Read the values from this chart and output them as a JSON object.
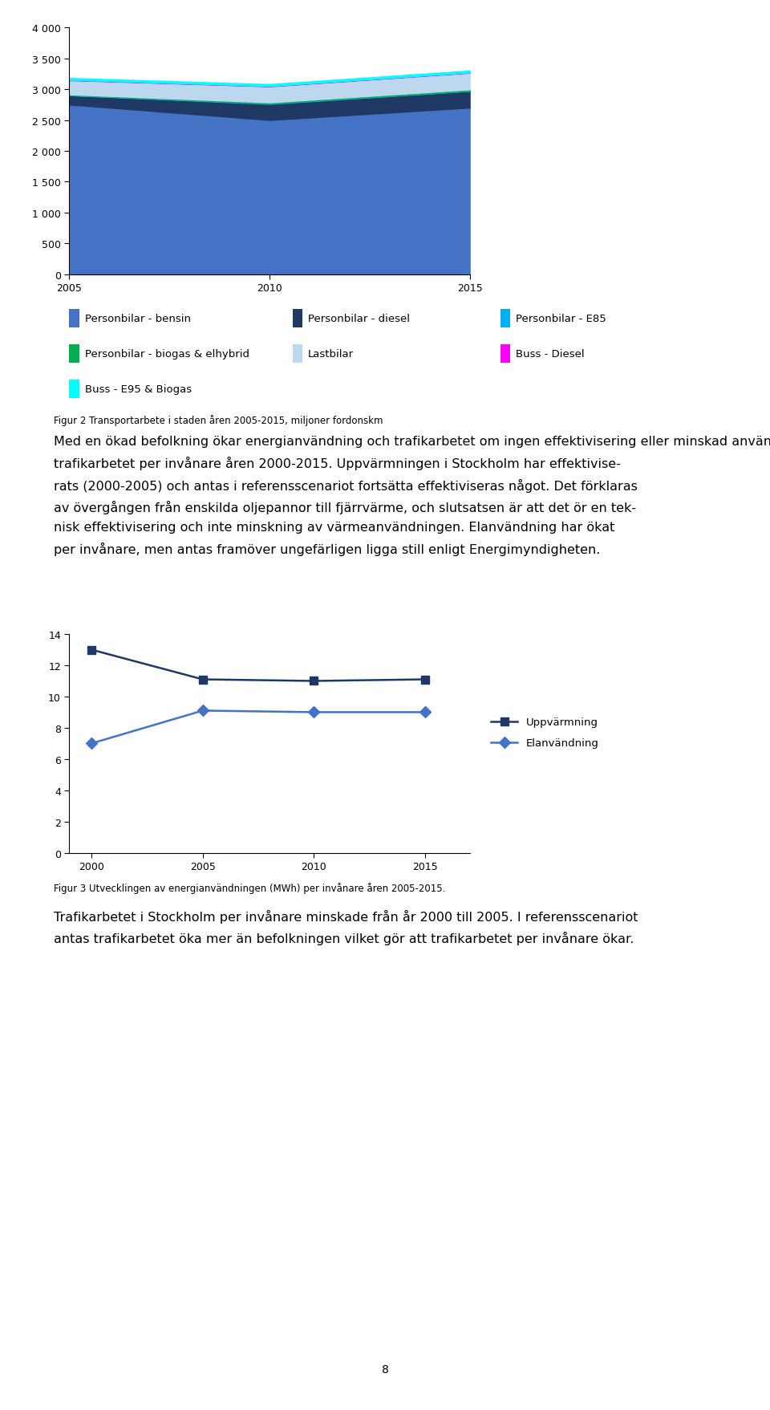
{
  "chart1": {
    "years": [
      2005,
      2010,
      2015
    ],
    "series_order": [
      "Personbilar - bensin",
      "Personbilar - diesel",
      "Personbilar - E85",
      "Personbilar - biogas & elhybrid",
      "Lastbilar",
      "Buss - Diesel",
      "Buss - E95 & Biogas"
    ],
    "series": {
      "Personbilar - bensin": [
        2750,
        2500,
        2700
      ],
      "Personbilar - diesel": [
        150,
        260,
        270
      ],
      "Personbilar - E85": [
        5,
        10,
        5
      ],
      "Personbilar - biogas & elhybrid": [
        10,
        15,
        20
      ],
      "Lastbilar": [
        230,
        260,
        270
      ],
      "Buss - Diesel": [
        5,
        5,
        5
      ],
      "Buss - E95 & Biogas": [
        30,
        30,
        30
      ]
    },
    "colors": {
      "Personbilar - bensin": "#4472C4",
      "Personbilar - diesel": "#1F3864",
      "Personbilar - E85": "#00B0F0",
      "Personbilar - biogas & elhybrid": "#00B050",
      "Lastbilar": "#BDD7EE",
      "Buss - Diesel": "#FF00FF",
      "Buss - E95 & Biogas": "#00FFFF"
    },
    "ylim": [
      0,
      4000
    ],
    "yticks": [
      0,
      500,
      1000,
      1500,
      2000,
      2500,
      3000,
      3500,
      4000
    ],
    "ytick_labels": [
      "0",
      "500",
      "1 000",
      "1 500",
      "2 000",
      "2 500",
      "3 000",
      "3 500",
      "4 000"
    ]
  },
  "chart2": {
    "years": [
      2000,
      2005,
      2010,
      2015
    ],
    "uppvarmning": [
      13.0,
      11.1,
      11.0,
      11.1
    ],
    "elanvandning": [
      7.0,
      9.1,
      9.0,
      9.0
    ],
    "ylim": [
      0,
      14
    ],
    "yticks": [
      0,
      2,
      4,
      6,
      8,
      10,
      12,
      14
    ],
    "uppvarmning_color": "#1F3864",
    "elanvandning_color": "#4472C4",
    "uppvarmning_marker": "s",
    "elanvandning_marker": "D"
  },
  "legend_row1": [
    {
      "label": "Personbilar - bensin",
      "color": "#4472C4"
    },
    {
      "label": "Personbilar - diesel",
      "color": "#1F3864"
    },
    {
      "label": "Personbilar - E85",
      "color": "#00B0F0"
    }
  ],
  "legend_row2": [
    {
      "label": "Personbilar - biogas & elhybrid",
      "color": "#00B050"
    },
    {
      "label": "Lastbilar",
      "color": "#BDD7EE"
    },
    {
      "label": "Buss - Diesel",
      "color": "#FF00FF"
    }
  ],
  "legend_row3": [
    {
      "label": "Buss - E95 & Biogas",
      "color": "#00FFFF"
    }
  ],
  "fig2_caption": "Figur 2 Transportarbete i staden åren 2005-2015, miljoner fordonskm",
  "fig3_caption": "Figur 3 Utvecklingen av energianvändningen (MWh) per invånare åren 2005-2015.",
  "para1_line1": "Med en ökad befolkning ökar energianvändning och trafikarbetet om ingen effektivisering eller minskad användning sker.",
  "para1_line2": "I nedanstående figurer visas energianvändningen och trafikarbetet per invånare åren 2000-2015. Uppvärmningen i Stockholm har effektivise-",
  "para1_line3": "rats (2000-2005) och antas i referensscenariot fortsätta effektiviseras något. Det förklaras av övergången från enskilda oljepannor till fjärrvärme, och slutsatsen är att det ör en tek-",
  "para1_line4": "nisk effektivisering och inte minskning av värmeanvändningen. Elanvändning har ökat",
  "para1_line5": "per invånare, men antas framöver ungefärligen ligga still enligt Energimyndigheten.",
  "para2_line1": "Trafikarbetet i Stockholm per invånare minskade från år 2000 till 2005. I referensscenariot",
  "para2_line2": "antas trafikarbetet öka mer än befolkningen vilket gör att trafikarbetet per invånare ökar.",
  "page_number": "8",
  "background_color": "#FFFFFF",
  "text_color": "#000000",
  "font_size_caption": 8.5,
  "font_size_body": 11.5,
  "font_size_tick": 9,
  "font_size_legend": 9.5,
  "font_size_page": 10
}
